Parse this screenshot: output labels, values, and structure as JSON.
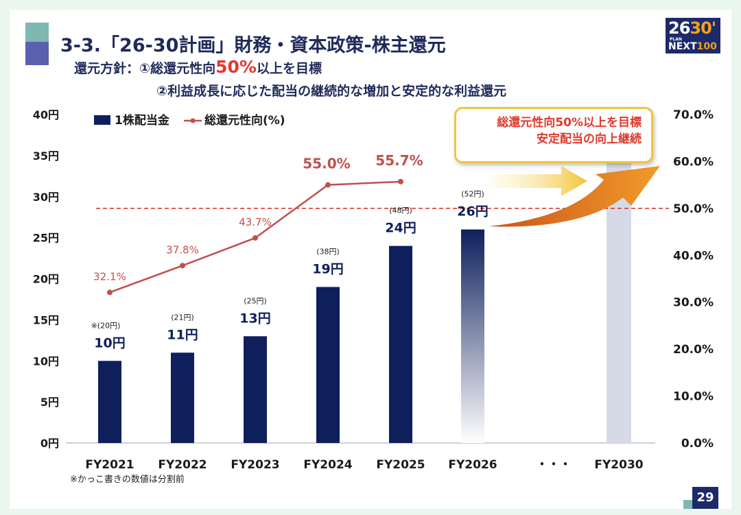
{
  "title": "3-3.「26-30計画」財務・資本政策-株主還元",
  "policy": {
    "line1_prefix": "還元方針：①総還元性向",
    "line1_highlight": "50%",
    "line1_suffix": "以上を目標",
    "line2": "②利益成長に応じた配当の継続的な増加と安定的な利益還元"
  },
  "logo": {
    "line1_a": "26",
    "line1_b": "30'",
    "line2": "PLAN",
    "line3_a": "NEXT",
    "line3_b": "100"
  },
  "callout": {
    "line1": "総還元性向50%以上を目標",
    "line2": "安定配当の向上継続"
  },
  "footnote": "※かっこ書きの数値は分割前",
  "page_number": "29",
  "chart_data": {
    "type": "bar",
    "categories": [
      "FY2021",
      "FY2022",
      "FY2023",
      "FY2024",
      "FY2025",
      "FY2026",
      "・・・",
      "FY2030"
    ],
    "series": [
      {
        "name": "1株配当金",
        "type": "bar",
        "axis": "left",
        "values": [
          10,
          11,
          13,
          19,
          24,
          26,
          null,
          40
        ],
        "value_labels": [
          "10円",
          "11円",
          "13円",
          "19円",
          "24円",
          "26円",
          "",
          ""
        ],
        "pre_split_labels": [
          "※(20円)",
          "(21円)",
          "(25円)",
          "(38円)",
          "(48円)",
          "(52円)",
          "",
          ""
        ]
      },
      {
        "name": "総還元性向(%)",
        "type": "line",
        "axis": "right",
        "values": [
          32.1,
          37.8,
          43.7,
          55.0,
          55.7,
          null,
          null,
          null
        ],
        "value_labels": [
          "32.1%",
          "37.8%",
          "43.7%",
          "55.0%",
          "55.7%",
          "",
          "",
          ""
        ]
      }
    ],
    "y_left": {
      "min": 0,
      "max": 40,
      "ticks": [
        "0円",
        "5円",
        "10円",
        "15円",
        "20円",
        "25円",
        "30円",
        "35円",
        "40円"
      ]
    },
    "y_right": {
      "min": 0,
      "max": 70,
      "ticks": [
        "0.0%",
        "10.0%",
        "20.0%",
        "30.0%",
        "40.0%",
        "50.0%",
        "60.0%",
        "70.0%"
      ]
    },
    "target_line": 50.0,
    "grid": false,
    "legend": "top-left",
    "colors": {
      "bar": "#0e1f5c",
      "line": "#c0504d",
      "target": "#e03a2f",
      "future_bar": "#d6dae6"
    }
  }
}
